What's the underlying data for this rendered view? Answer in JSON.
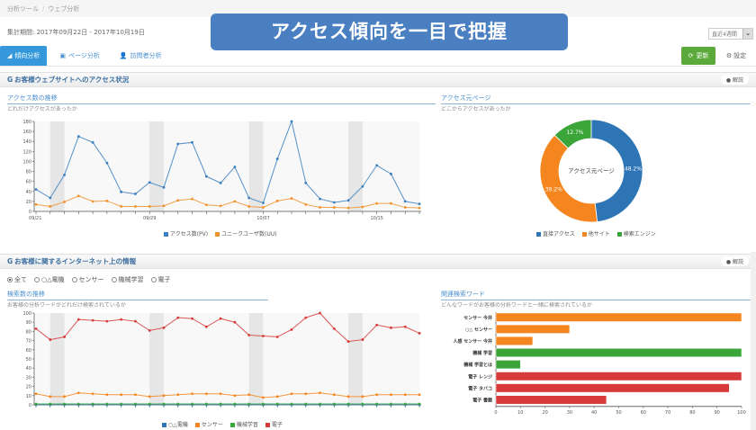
{
  "breadcrumb": [
    "分析ツール",
    "ウェブ分析"
  ],
  "period_label": "集計期間: 2017年09月22日 - 2017年10月19日",
  "banner": "アクセス傾向を一目で把握",
  "range_select": {
    "value": "直近4週間",
    "icon": "chevron-down-icon"
  },
  "tabs": [
    {
      "label": "傾向分析",
      "icon": "chart-icon",
      "active": true
    },
    {
      "label": "ページ分析",
      "icon": "page-icon",
      "active": false
    },
    {
      "label": "訪問者分析",
      "icon": "user-icon",
      "active": false
    }
  ],
  "buttons": {
    "update": "更新",
    "settings": "設定",
    "hint": "解説"
  },
  "section1": {
    "title": "お客様ウェブサイトへのアクセス状況",
    "left": {
      "title": "アクセス数の推移",
      "desc": "どれだけアクセスがあったか"
    },
    "right": {
      "title": "アクセス元ページ",
      "desc": "どこからアクセスがあったか"
    }
  },
  "section2": {
    "title": "お客様に関するインターネット上の情報",
    "radios": [
      {
        "label": "全て",
        "checked": true
      },
      {
        "label": "○△電機",
        "checked": false
      },
      {
        "label": "センサー",
        "checked": false
      },
      {
        "label": "機械学習",
        "checked": false
      },
      {
        "label": "電子",
        "checked": false
      }
    ],
    "left": {
      "title": "検索数の推移",
      "desc": "お客様の分析ワードがどれだけ検索されているか"
    },
    "right": {
      "title": "関連検索ワード",
      "desc": "どんなワードがお客様の分析ワードと一緒に検索されているか"
    }
  },
  "chart_data": [
    {
      "type": "line",
      "title": "アクセス数の推移",
      "x_tick_labels": [
        "09/21",
        "09/29",
        "10/07",
        "10/15"
      ],
      "y_ticks": [
        0,
        20,
        40,
        60,
        80,
        100,
        120,
        140,
        160,
        180
      ],
      "ylim": [
        0,
        180
      ],
      "shaded_bands": [
        [
          1,
          2
        ],
        [
          8,
          9
        ],
        [
          15,
          16
        ],
        [
          22,
          23
        ]
      ],
      "series": [
        {
          "name": "アクセス数(PV)",
          "color": "#3a7fc0",
          "values": [
            44,
            27,
            73,
            150,
            138,
            97,
            39,
            35,
            58,
            48,
            135,
            138,
            70,
            57,
            89,
            27,
            17,
            105,
            180,
            57,
            25,
            18,
            22,
            50,
            92,
            75,
            20,
            15
          ]
        },
        {
          "name": "ユニークユーザ数(UU)",
          "color": "#f0922c",
          "values": [
            14,
            10,
            19,
            31,
            20,
            21,
            10,
            10,
            10,
            11,
            22,
            25,
            13,
            11,
            20,
            10,
            8,
            21,
            26,
            14,
            8,
            8,
            7,
            9,
            16,
            16,
            8,
            7
          ]
        }
      ]
    },
    {
      "type": "pie",
      "title": "アクセス元ページ",
      "center_label": "アクセス元ページ",
      "slices": [
        {
          "name": "直接アクセス",
          "value": 48.2,
          "color": "#2e75b6"
        },
        {
          "name": "他サイト",
          "value": 39.2,
          "color": "#f5861f"
        },
        {
          "name": "検索エンジン",
          "value": 12.7,
          "color": "#3ba53a"
        }
      ]
    },
    {
      "type": "line",
      "title": "検索数の推移",
      "x_tick_labels": [
        "09/21",
        "09/29",
        "10/07",
        "10/15"
      ],
      "y_ticks": [
        0,
        10,
        20,
        30,
        40,
        50,
        60,
        70,
        80,
        90,
        100
      ],
      "ylim": [
        0,
        100
      ],
      "shaded_bands": [
        [
          1,
          2
        ],
        [
          8,
          9
        ],
        [
          15,
          16
        ],
        [
          22,
          23
        ]
      ],
      "series": [
        {
          "name": "○△電機",
          "color": "#2e75b6",
          "values": [
            0,
            0,
            0,
            0,
            0,
            0,
            0,
            0,
            0,
            0,
            0,
            0,
            0,
            0,
            0,
            0,
            0,
            0,
            0,
            0,
            0,
            0,
            0,
            0,
            0,
            0,
            0,
            0
          ]
        },
        {
          "name": "センサー",
          "color": "#f5861f",
          "values": [
            12,
            9,
            9,
            13,
            12,
            11,
            11,
            11,
            9,
            10,
            11,
            12,
            12,
            12,
            10,
            11,
            8,
            9,
            12,
            12,
            13,
            11,
            9,
            9,
            11,
            11,
            11,
            11
          ]
        },
        {
          "name": "機械学習",
          "color": "#3ba53a",
          "values": [
            1,
            1,
            1,
            1,
            1,
            1,
            1,
            1,
            1,
            1,
            1,
            1,
            1,
            1,
            1,
            1,
            1,
            1,
            1,
            1,
            1,
            1,
            1,
            1,
            1,
            1,
            1,
            1
          ]
        },
        {
          "name": "電子",
          "color": "#d63a3a",
          "values": [
            83,
            71,
            74,
            93,
            92,
            91,
            93,
            91,
            81,
            84,
            95,
            94,
            85,
            94,
            90,
            76,
            75,
            74,
            82,
            95,
            100,
            83,
            69,
            71,
            87,
            84,
            85,
            78
          ]
        }
      ]
    },
    {
      "type": "bar",
      "orientation": "horizontal",
      "title": "関連検索ワード",
      "categories": [
        "センサー 今井",
        "○△ センサー",
        "人感 センサー 今井",
        "機械 学習",
        "機械 学習とは",
        "電子 レンジ",
        "電子 タバコ",
        "電子 書籍"
      ],
      "values": [
        100,
        30,
        15,
        100,
        10,
        100,
        95,
        45
      ],
      "colors": [
        "#f5861f",
        "#f5861f",
        "#f5861f",
        "#3ba53a",
        "#3ba53a",
        "#d63a3a",
        "#d63a3a",
        "#d63a3a"
      ],
      "x_ticks": [
        0,
        10,
        20,
        30,
        40,
        50,
        60,
        70,
        80,
        90,
        100
      ],
      "xlim": [
        0,
        100
      ]
    }
  ]
}
